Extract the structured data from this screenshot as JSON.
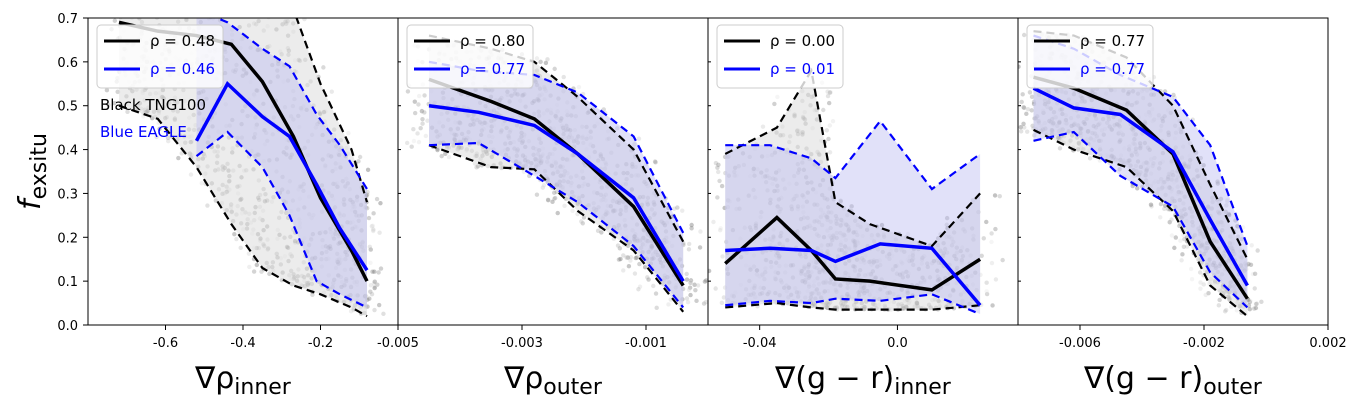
{
  "colors": {
    "tng": "#000000",
    "eagle": "#0000ff",
    "eagle_band": "#bdbdf2",
    "tng_band": "#dcdcdc"
  },
  "chart_data": [
    {
      "type": "line",
      "xlabel_main": "∇ρ",
      "xlabel_sub": "inner",
      "ylabel_main": "f",
      "ylabel_sub": "exsitu",
      "xlim": [
        -0.8,
        -0.0
      ],
      "ylim": [
        0,
        0.7
      ],
      "xticks": [
        -0.6,
        -0.4,
        -0.2
      ],
      "xtick_labels": [
        "-0.6",
        "-0.4",
        "-0.2"
      ],
      "yticks": [
        0.0,
        0.1,
        0.2,
        0.3,
        0.4,
        0.5,
        0.6,
        0.7
      ],
      "ytick_labels": [
        "0.0",
        "0.1",
        "0.2",
        "0.3",
        "0.4",
        "0.5",
        "0.6",
        "0.7"
      ],
      "legend": [
        {
          "label": "ρ = 0.48",
          "color": "#000000"
        },
        {
          "label": "ρ = 0.46",
          "color": "#0000ff"
        }
      ],
      "annotations": [
        {
          "text": "Black TNG100",
          "color": "#000000"
        },
        {
          "text": "Blue EAGLE",
          "color": "#0000ff"
        }
      ],
      "series": [
        {
          "x": [
            -0.72,
            -0.62,
            -0.52,
            -0.43,
            -0.35,
            -0.27,
            -0.2,
            -0.12,
            -0.08
          ],
          "median": [
            0.69,
            0.67,
            0.66,
            0.64,
            0.555,
            0.43,
            0.29,
            0.17,
            0.1
          ],
          "lower": [
            0.5,
            0.47,
            0.36,
            0.23,
            0.13,
            0.09,
            0.07,
            0.04,
            0.02
          ],
          "upper": [
            0.72,
            0.72,
            0.72,
            0.72,
            0.72,
            0.72,
            0.55,
            0.4,
            0.28
          ],
          "color": "#000000"
        },
        {
          "x": [
            -0.52,
            -0.44,
            -0.35,
            -0.28,
            -0.21,
            -0.15,
            -0.08
          ],
          "median": [
            0.42,
            0.55,
            0.475,
            0.43,
            0.32,
            0.22,
            0.125
          ],
          "lower": [
            0.385,
            0.44,
            0.36,
            0.25,
            0.1,
            0.07,
            0.04
          ],
          "upper": [
            0.72,
            0.69,
            0.63,
            0.59,
            0.48,
            0.41,
            0.31
          ],
          "color": "#0000ff"
        }
      ]
    },
    {
      "type": "line",
      "xlabel_main": "∇ρ",
      "xlabel_sub": "outer",
      "xlim": [
        -0.005,
        0.0
      ],
      "xticks": [
        -0.005,
        -0.003,
        -0.001
      ],
      "xtick_labels": [
        "-0.005",
        "-0.003",
        "-0.001"
      ],
      "legend": [
        {
          "label": "ρ = 0.80",
          "color": "#000000"
        },
        {
          "label": "ρ = 0.77",
          "color": "#0000ff"
        }
      ],
      "series": [
        {
          "x": [
            -0.0045,
            -0.0035,
            -0.0028,
            -0.0021,
            -0.0012,
            -0.0004
          ],
          "median": [
            0.56,
            0.51,
            0.47,
            0.39,
            0.27,
            0.09
          ],
          "lower": [
            0.41,
            0.36,
            0.355,
            0.26,
            0.17,
            0.03
          ],
          "upper": [
            0.66,
            0.63,
            0.6,
            0.52,
            0.4,
            0.19
          ],
          "color": "#000000"
        },
        {
          "x": [
            -0.0045,
            -0.0037,
            -0.0028,
            -0.0021,
            -0.0012,
            -0.0004
          ],
          "median": [
            0.5,
            0.485,
            0.455,
            0.39,
            0.29,
            0.1
          ],
          "lower": [
            0.41,
            0.415,
            0.34,
            0.28,
            0.18,
            0.04
          ],
          "upper": [
            0.6,
            0.58,
            0.57,
            0.53,
            0.43,
            0.21
          ],
          "color": "#0000ff"
        }
      ]
    },
    {
      "type": "line",
      "xlabel_main": "∇(g − r)",
      "xlabel_sub": "inner",
      "xlim": [
        -0.055,
        0.035
      ],
      "xticks": [
        -0.04,
        0.0
      ],
      "xtick_labels": [
        "-0.04",
        "0.0"
      ],
      "legend": [
        {
          "label": "ρ = 0.00",
          "color": "#000000"
        },
        {
          "label": "ρ = 0.01",
          "color": "#0000ff"
        }
      ],
      "series": [
        {
          "x": [
            -0.05,
            -0.035,
            -0.025,
            -0.018,
            -0.008,
            0.01,
            0.024
          ],
          "median": [
            0.14,
            0.245,
            0.17,
            0.105,
            0.1,
            0.08,
            0.15
          ],
          "lower": [
            0.04,
            0.05,
            0.04,
            0.035,
            0.035,
            0.035,
            0.045
          ],
          "upper": [
            0.39,
            0.45,
            0.58,
            0.28,
            0.23,
            0.18,
            0.3
          ],
          "color": "#000000"
        },
        {
          "x": [
            -0.05,
            -0.037,
            -0.025,
            -0.018,
            -0.005,
            0.01,
            0.024
          ],
          "median": [
            0.17,
            0.175,
            0.17,
            0.145,
            0.185,
            0.175,
            0.045
          ],
          "lower": [
            0.045,
            0.055,
            0.05,
            0.06,
            0.055,
            0.07,
            0.025
          ],
          "upper": [
            0.41,
            0.41,
            0.38,
            0.335,
            0.465,
            0.31,
            0.39
          ],
          "color": "#0000ff"
        }
      ]
    },
    {
      "type": "line",
      "xlabel_main": "∇(g − r)",
      "xlabel_sub": "outer",
      "xlim": [
        -0.008,
        0.002
      ],
      "xticks": [
        -0.006,
        -0.002,
        0.002
      ],
      "xtick_labels": [
        "-0.006",
        "-0.002",
        "0.002"
      ],
      "legend": [
        {
          "label": "ρ = 0.77",
          "color": "#000000"
        },
        {
          "label": "ρ = 0.77",
          "color": "#0000ff"
        }
      ],
      "series": [
        {
          "x": [
            -0.0075,
            -0.0062,
            -0.0045,
            -0.003,
            -0.0018,
            -0.0006
          ],
          "median": [
            0.565,
            0.54,
            0.49,
            0.39,
            0.19,
            0.06
          ],
          "lower": [
            0.445,
            0.4,
            0.36,
            0.26,
            0.09,
            0.02
          ],
          "upper": [
            0.67,
            0.66,
            0.61,
            0.5,
            0.32,
            0.15
          ],
          "color": "#000000"
        },
        {
          "x": [
            -0.0075,
            -0.0062,
            -0.0047,
            -0.003,
            -0.0018,
            -0.0006
          ],
          "median": [
            0.54,
            0.495,
            0.48,
            0.395,
            0.24,
            0.09
          ],
          "lower": [
            0.42,
            0.44,
            0.34,
            0.27,
            0.12,
            0.04
          ],
          "upper": [
            0.66,
            0.63,
            0.57,
            0.52,
            0.41,
            0.18
          ],
          "color": "#0000ff"
        }
      ]
    }
  ]
}
